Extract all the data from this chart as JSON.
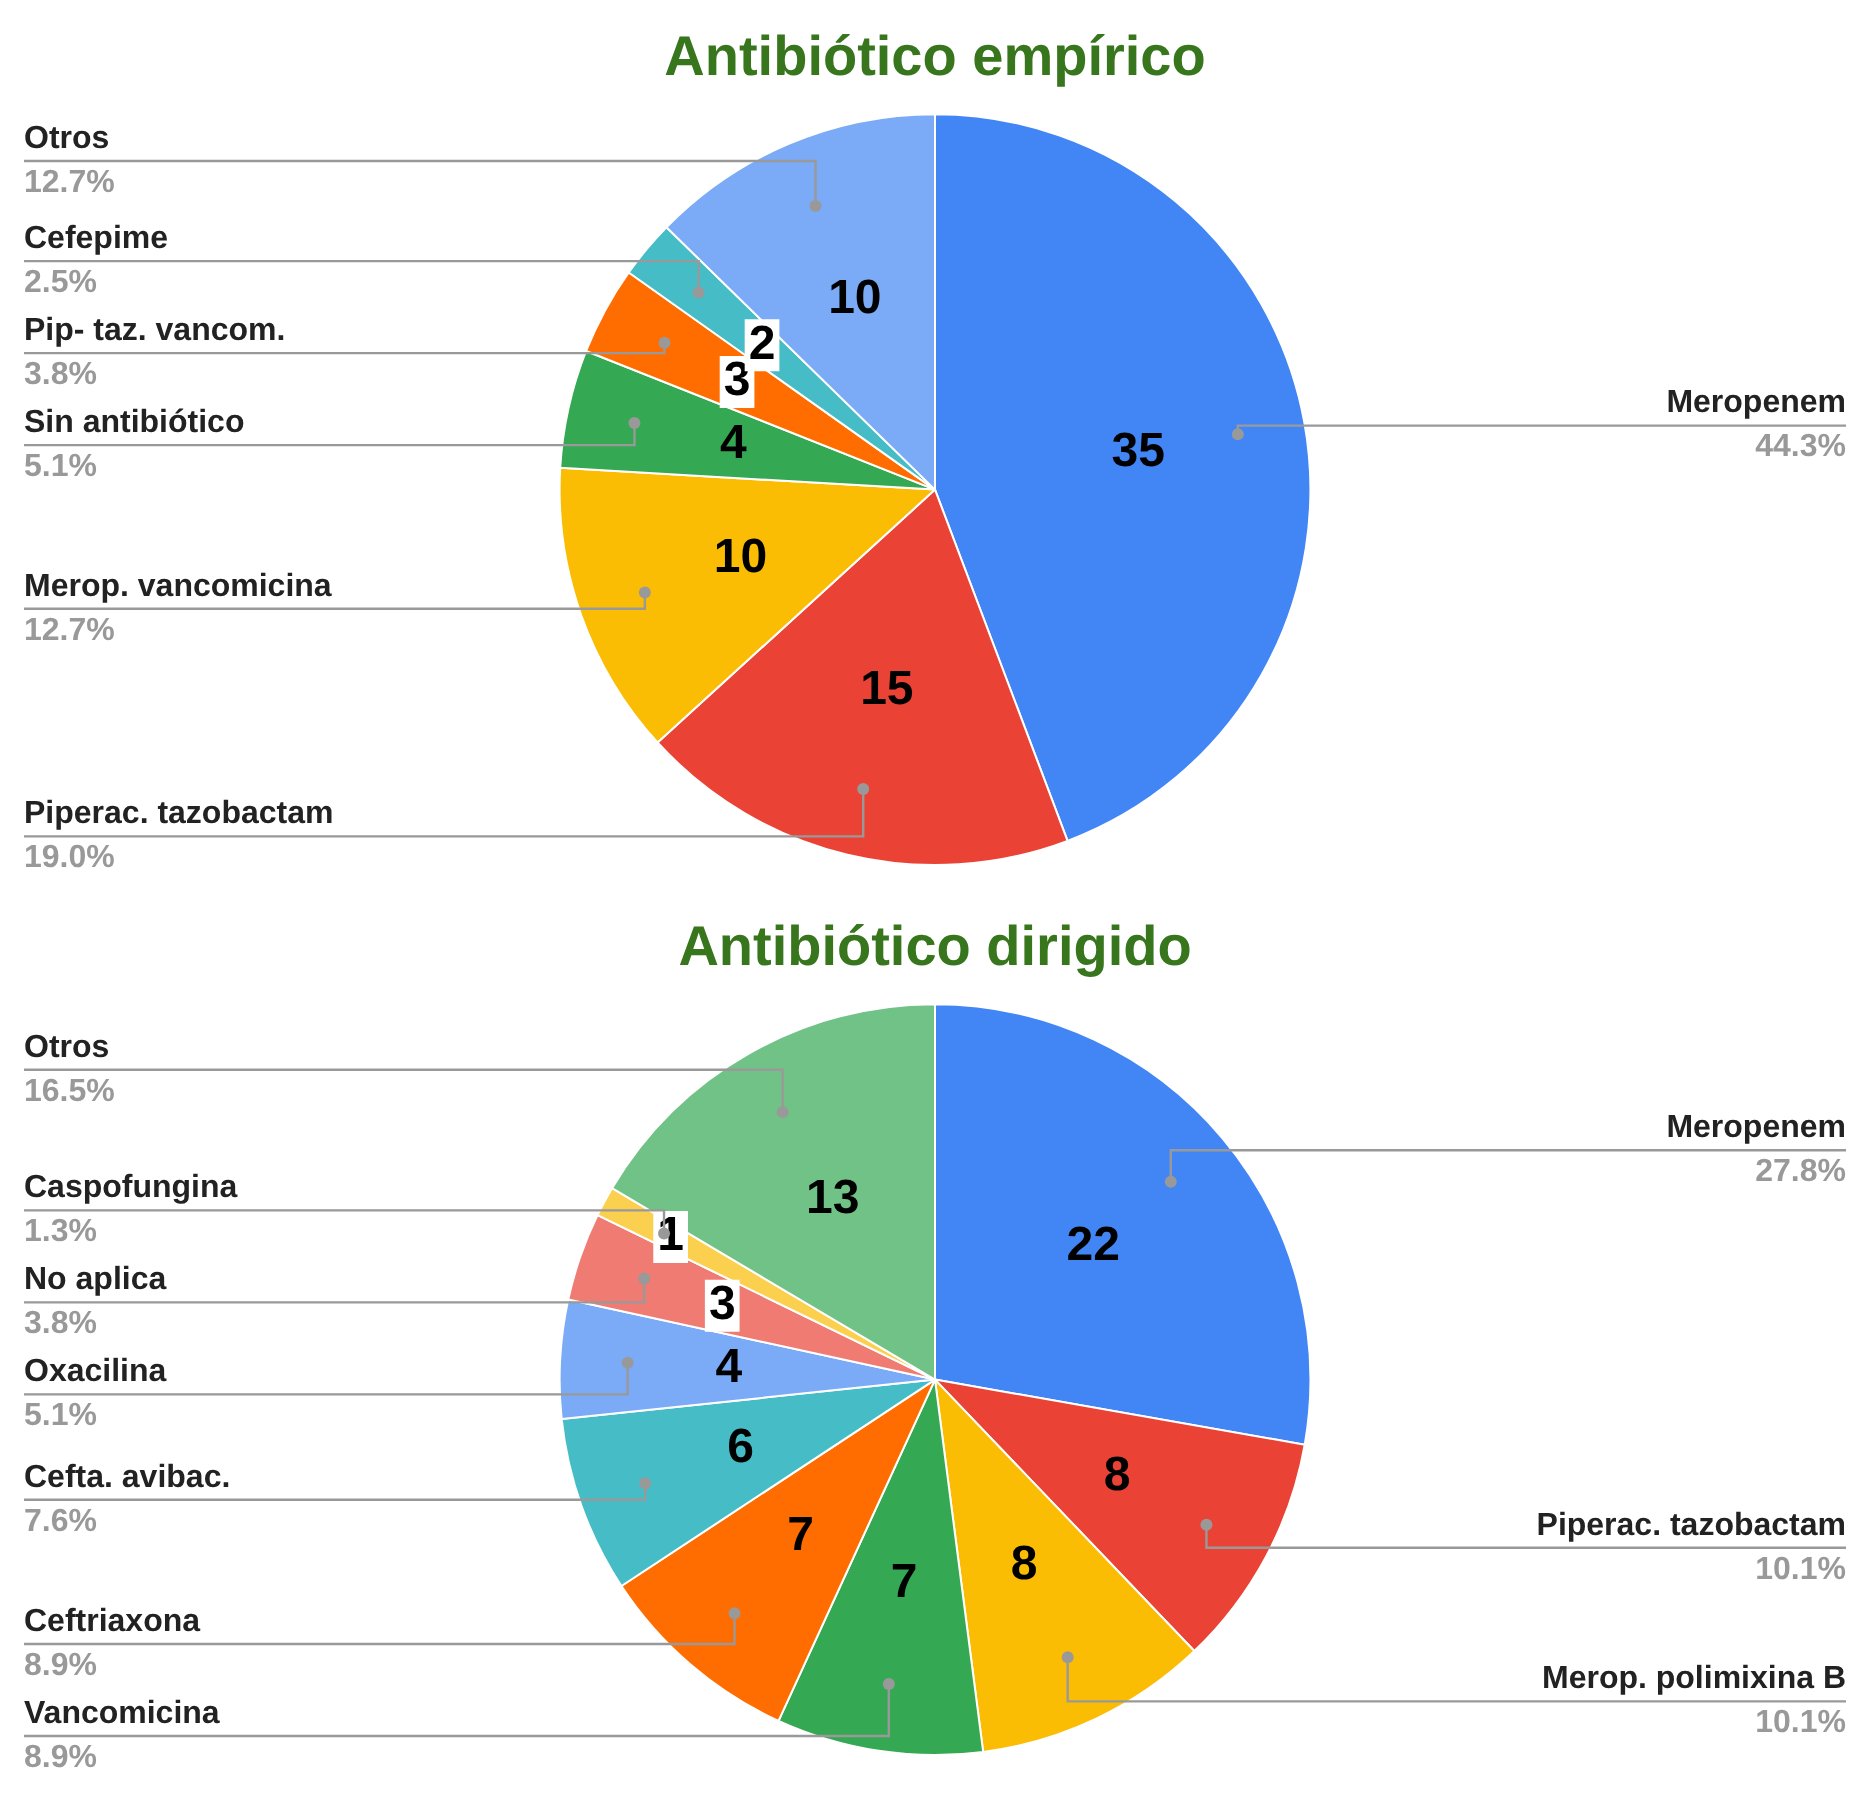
{
  "chart_data": [
    {
      "type": "pie",
      "title": "Antibiótico empírico",
      "categories": [
        "Meropenem",
        "Piperac. tazobactam",
        "Merop. vancomicina",
        "Sin antibiótico",
        "Pip- taz. vancom.",
        "Cefepime",
        "Otros"
      ],
      "values": [
        44.3,
        19.0,
        12.7,
        5.1,
        3.8,
        2.5,
        12.7
      ],
      "colors": [
        "#4285f4",
        "#ea4335",
        "#fbbc04",
        "#34a853",
        "#ff6d01",
        "#46bdc6",
        "#7baaf7"
      ],
      "value_labels": [
        "44.3%",
        "19.0%",
        "12.7%",
        "5.1%",
        "3.8%",
        "2.5%",
        "12.7%"
      ],
      "annotations": [
        "35",
        "15",
        "10",
        "4",
        "3",
        "2",
        "10"
      ],
      "legend": false
    },
    {
      "type": "pie",
      "title": "Antibiótico dirigido",
      "categories": [
        "Meropenem",
        "Piperac. tazobactam",
        "Merop. polimixina B",
        "Vancomicina",
        "Ceftriaxona",
        "Cefta. avibac.",
        "Oxacilina",
        "No aplica",
        "Caspofungina",
        "Otros"
      ],
      "values": [
        27.8,
        10.1,
        10.1,
        8.9,
        8.9,
        7.6,
        5.1,
        3.8,
        1.3,
        16.5
      ],
      "colors": [
        "#4285f4",
        "#ea4335",
        "#fbbc04",
        "#34a853",
        "#ff6d01",
        "#46bdc6",
        "#7baaf7",
        "#f07b72",
        "#fcd04f",
        "#71c287"
      ],
      "value_labels": [
        "27.8%",
        "10.1%",
        "10.1%",
        "8.9%",
        "8.9%",
        "7.6%",
        "5.1%",
        "3.8%",
        "1.3%",
        "16.5%"
      ],
      "annotations": [
        "22",
        "8",
        "8",
        "7",
        "7",
        "6",
        "4",
        "3",
        "1",
        "13"
      ],
      "legend": false
    }
  ]
}
